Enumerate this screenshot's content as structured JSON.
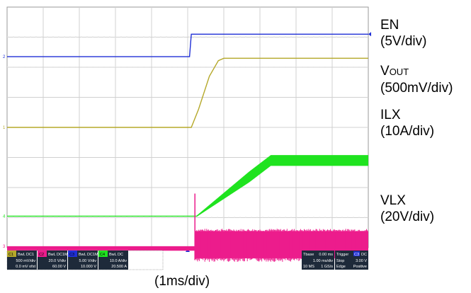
{
  "chart_data": {
    "type": "line",
    "time_per_div": "(1ms/div)",
    "grid": true,
    "divisions": {
      "x": 10,
      "y": 8
    },
    "trigger_time_div": 5.0,
    "channels": [
      {
        "key": "EN",
        "name": "EN",
        "scale": "(5V/div)",
        "color": "#1f2fd6",
        "marker": "2",
        "points": [
          [
            0,
            6.35
          ],
          [
            5.05,
            6.35
          ],
          [
            5.1,
            7.1
          ],
          [
            10,
            7.1
          ]
        ]
      },
      {
        "key": "VOUT",
        "name_main": "V",
        "name_sub": "OUT",
        "scale": "(500mV/div)",
        "color": "#b5a82a",
        "marker": "1",
        "points": [
          [
            0,
            4.0
          ],
          [
            5.1,
            4.0
          ],
          [
            5.3,
            4.6
          ],
          [
            5.6,
            5.7
          ],
          [
            5.85,
            6.22
          ],
          [
            6.0,
            6.3
          ],
          [
            10,
            6.3
          ]
        ]
      },
      {
        "key": "ILX",
        "name": "ILX",
        "scale": "(10A/div)",
        "color": "#1fe31f",
        "marker": "4",
        "points": [
          [
            0,
            1.05
          ],
          [
            5.25,
            1.05
          ],
          [
            6.7,
            2.35
          ],
          [
            7.3,
            2.9
          ],
          [
            10,
            2.9
          ]
        ],
        "ripple_band": [
          [
            5.25,
            0.02
          ],
          [
            6.7,
            0.18
          ],
          [
            7.3,
            0.18
          ],
          [
            10,
            0.18
          ]
        ]
      },
      {
        "key": "VLX",
        "name": "VLX",
        "scale": "(20V/div)",
        "color": "#ec1c8c",
        "marker": "3",
        "points": [
          [
            0,
            0.05
          ],
          [
            5.2,
            0.05
          ],
          [
            5.2,
            0.55
          ],
          [
            10,
            0.55
          ]
        ],
        "band_low": [
          [
            0,
            -0.1
          ],
          [
            5.2,
            -0.1
          ],
          [
            5.2,
            -0.35
          ],
          [
            10,
            -0.35
          ]
        ]
      }
    ]
  },
  "status_bar": {
    "channels": [
      {
        "tag": "C1",
        "tag_color": "#b5a82a",
        "status": "BwL DC1",
        "line1": "500 mV/div",
        "line2": "0.0 mV ofst"
      },
      {
        "tag": "C2",
        "tag_color": "#ec1c8c",
        "status": "BwL DC1M",
        "line1": "20.0 V/div",
        "line2": "60.00 V"
      },
      {
        "tag": "C3",
        "tag_color": "#1f2fd6",
        "status": "BwL DC1M",
        "line1": "5.00 V/div",
        "line2": "10.000 V"
      },
      {
        "tag": "C4",
        "tag_color": "#1fe31f",
        "status": "BwL DC",
        "line1": "10.0 A/div",
        "line2": "20.500 A"
      }
    ],
    "timebase": {
      "title": "Tbase",
      "value": "0.00 ms",
      "line1": "1.00 ms/div",
      "line2a": "10 MS",
      "line2b": "1 GS/s"
    },
    "trigger": {
      "title": "Trigger",
      "tag": "C3",
      "mode": "DC",
      "line1a": "Stop",
      "line1b": "3.00 V",
      "line2a": "Edge",
      "line2b": "Positive"
    }
  }
}
